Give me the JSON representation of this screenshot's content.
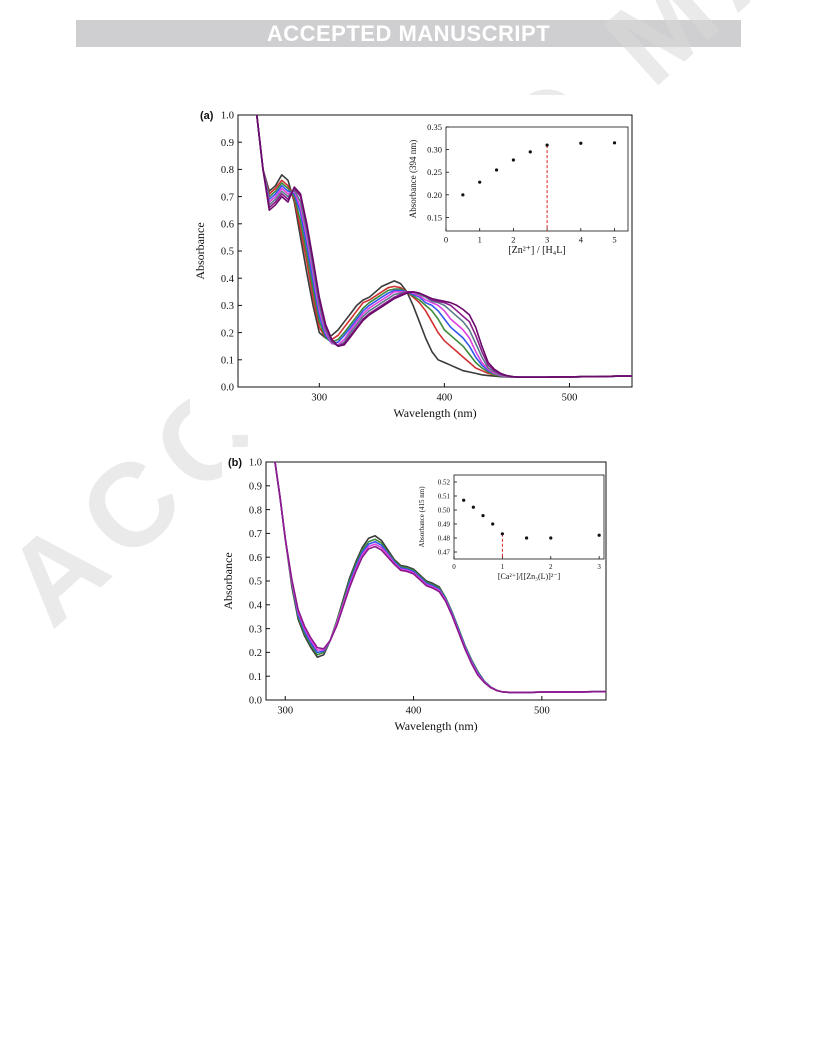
{
  "header": {
    "banner_text": "ACCEPTED MANUSCRIPT"
  },
  "watermark": {
    "text": "ACCEPTED MANUSCRIPT"
  },
  "chart_data": [
    {
      "panel": "(a)",
      "type": "line",
      "xlabel": "Wavelength (nm)",
      "ylabel": "Absorbance",
      "xlim": [
        235,
        550
      ],
      "ylim": [
        0.0,
        1.0
      ],
      "xticks": [
        300,
        400,
        500
      ],
      "yticks": [
        0.0,
        0.1,
        0.2,
        0.3,
        0.4,
        0.5,
        0.6,
        0.7,
        0.8,
        0.9,
        1.0
      ],
      "x": [
        250,
        255,
        260,
        265,
        270,
        275,
        280,
        285,
        290,
        295,
        300,
        305,
        310,
        315,
        320,
        325,
        330,
        335,
        340,
        345,
        350,
        355,
        360,
        365,
        370,
        375,
        380,
        385,
        390,
        395,
        400,
        405,
        410,
        415,
        420,
        425,
        430,
        435,
        440,
        445,
        450,
        455,
        460,
        465,
        470,
        475,
        480,
        490,
        500,
        510,
        520,
        530,
        540,
        550
      ],
      "series": [
        {
          "color": "#3a3a3a",
          "values": [
            1.0,
            0.8,
            0.72,
            0.74,
            0.78,
            0.76,
            0.68,
            0.55,
            0.42,
            0.3,
            0.2,
            0.18,
            0.19,
            0.21,
            0.24,
            0.27,
            0.3,
            0.32,
            0.33,
            0.35,
            0.37,
            0.38,
            0.39,
            0.38,
            0.35,
            0.3,
            0.24,
            0.18,
            0.13,
            0.1,
            0.09,
            0.08,
            0.07,
            0.06,
            0.055,
            0.05,
            0.045,
            0.042,
            0.04,
            0.038,
            0.037,
            0.036,
            0.036,
            0.036,
            0.036,
            0.036,
            0.036,
            0.037,
            0.037,
            0.038,
            0.038,
            0.039,
            0.04,
            0.04
          ]
        },
        {
          "color": "#d03030",
          "values": [
            1.0,
            0.8,
            0.71,
            0.73,
            0.76,
            0.74,
            0.69,
            0.58,
            0.46,
            0.33,
            0.22,
            0.18,
            0.175,
            0.19,
            0.22,
            0.25,
            0.28,
            0.31,
            0.32,
            0.335,
            0.35,
            0.365,
            0.37,
            0.365,
            0.35,
            0.33,
            0.31,
            0.28,
            0.24,
            0.2,
            0.17,
            0.15,
            0.13,
            0.11,
            0.09,
            0.07,
            0.06,
            0.05,
            0.045,
            0.04,
            0.038,
            0.037,
            0.036,
            0.036,
            0.036,
            0.036,
            0.036,
            0.037,
            0.037,
            0.038,
            0.038,
            0.039,
            0.04,
            0.04
          ]
        },
        {
          "color": "#3a8a3a",
          "values": [
            1.0,
            0.8,
            0.7,
            0.72,
            0.75,
            0.73,
            0.7,
            0.61,
            0.49,
            0.36,
            0.24,
            0.18,
            0.165,
            0.175,
            0.2,
            0.23,
            0.26,
            0.29,
            0.31,
            0.325,
            0.34,
            0.355,
            0.36,
            0.36,
            0.35,
            0.335,
            0.32,
            0.3,
            0.28,
            0.25,
            0.21,
            0.19,
            0.17,
            0.15,
            0.12,
            0.09,
            0.07,
            0.055,
            0.045,
            0.04,
            0.038,
            0.037,
            0.036,
            0.036,
            0.036,
            0.036,
            0.036,
            0.037,
            0.037,
            0.038,
            0.038,
            0.039,
            0.04,
            0.04
          ]
        },
        {
          "color": "#3355ee",
          "values": [
            1.0,
            0.8,
            0.69,
            0.71,
            0.74,
            0.72,
            0.71,
            0.64,
            0.52,
            0.39,
            0.26,
            0.19,
            0.16,
            0.165,
            0.19,
            0.22,
            0.25,
            0.28,
            0.3,
            0.315,
            0.33,
            0.345,
            0.355,
            0.355,
            0.35,
            0.34,
            0.33,
            0.31,
            0.3,
            0.28,
            0.25,
            0.22,
            0.2,
            0.18,
            0.15,
            0.11,
            0.08,
            0.06,
            0.05,
            0.042,
            0.039,
            0.037,
            0.036,
            0.036,
            0.036,
            0.036,
            0.036,
            0.037,
            0.037,
            0.038,
            0.038,
            0.039,
            0.04,
            0.04
          ]
        },
        {
          "color": "#e040e0",
          "values": [
            1.0,
            0.8,
            0.68,
            0.7,
            0.73,
            0.71,
            0.72,
            0.66,
            0.55,
            0.42,
            0.28,
            0.2,
            0.16,
            0.155,
            0.175,
            0.21,
            0.24,
            0.27,
            0.29,
            0.305,
            0.32,
            0.335,
            0.35,
            0.35,
            0.35,
            0.345,
            0.335,
            0.32,
            0.31,
            0.3,
            0.28,
            0.25,
            0.23,
            0.21,
            0.18,
            0.13,
            0.09,
            0.065,
            0.05,
            0.043,
            0.039,
            0.037,
            0.036,
            0.036,
            0.036,
            0.036,
            0.036,
            0.037,
            0.037,
            0.038,
            0.038,
            0.039,
            0.04,
            0.04
          ]
        },
        {
          "color": "#5a7a8a",
          "values": [
            1.0,
            0.8,
            0.67,
            0.69,
            0.72,
            0.7,
            0.725,
            0.68,
            0.57,
            0.44,
            0.3,
            0.21,
            0.165,
            0.15,
            0.165,
            0.2,
            0.23,
            0.26,
            0.28,
            0.295,
            0.31,
            0.325,
            0.34,
            0.345,
            0.35,
            0.35,
            0.34,
            0.33,
            0.315,
            0.31,
            0.3,
            0.28,
            0.26,
            0.24,
            0.21,
            0.16,
            0.11,
            0.07,
            0.055,
            0.045,
            0.04,
            0.037,
            0.036,
            0.036,
            0.036,
            0.036,
            0.036,
            0.037,
            0.037,
            0.038,
            0.038,
            0.039,
            0.04,
            0.04
          ]
        },
        {
          "color": "#8a1a8a",
          "values": [
            1.0,
            0.8,
            0.66,
            0.68,
            0.71,
            0.69,
            0.73,
            0.7,
            0.59,
            0.46,
            0.32,
            0.22,
            0.17,
            0.15,
            0.16,
            0.19,
            0.22,
            0.25,
            0.27,
            0.285,
            0.3,
            0.315,
            0.33,
            0.34,
            0.35,
            0.35,
            0.345,
            0.335,
            0.32,
            0.315,
            0.31,
            0.3,
            0.28,
            0.26,
            0.24,
            0.19,
            0.13,
            0.08,
            0.06,
            0.047,
            0.041,
            0.038,
            0.036,
            0.036,
            0.036,
            0.036,
            0.036,
            0.037,
            0.037,
            0.038,
            0.038,
            0.039,
            0.04,
            0.04
          ]
        },
        {
          "color": "#6a0a6a",
          "values": [
            1.0,
            0.8,
            0.65,
            0.67,
            0.7,
            0.68,
            0.735,
            0.71,
            0.6,
            0.47,
            0.33,
            0.23,
            0.175,
            0.15,
            0.155,
            0.185,
            0.215,
            0.245,
            0.265,
            0.28,
            0.295,
            0.31,
            0.325,
            0.335,
            0.345,
            0.35,
            0.345,
            0.335,
            0.325,
            0.32,
            0.315,
            0.31,
            0.3,
            0.285,
            0.265,
            0.22,
            0.15,
            0.09,
            0.065,
            0.05,
            0.042,
            0.038,
            0.036,
            0.036,
            0.036,
            0.036,
            0.036,
            0.037,
            0.037,
            0.038,
            0.038,
            0.039,
            0.04,
            0.04
          ]
        }
      ],
      "inset": {
        "type": "scatter",
        "xlabel": "[Zn²⁺] / [H₄L]",
        "ylabel": "Absorbance (394 nm)",
        "xlim": [
          0,
          5.4
        ],
        "ylim": [
          0.12,
          0.35
        ],
        "xticks": [
          0,
          1,
          2,
          3,
          4,
          5
        ],
        "yticks": [
          0.15,
          0.2,
          0.25,
          0.3,
          0.35
        ],
        "x": [
          0.5,
          1.0,
          1.5,
          2.0,
          2.5,
          3.0,
          4.0,
          5.0
        ],
        "y": [
          0.2,
          0.228,
          0.255,
          0.277,
          0.295,
          0.31,
          0.314,
          0.315
        ],
        "reference_line_x": 3.0
      }
    },
    {
      "panel": "(b)",
      "type": "line",
      "xlabel": "Wavelength (nm)",
      "ylabel": "Absorbance",
      "xlim": [
        285,
        550
      ],
      "ylim": [
        0.0,
        1.0
      ],
      "xticks": [
        300,
        400,
        500
      ],
      "yticks": [
        0.0,
        0.1,
        0.2,
        0.3,
        0.4,
        0.5,
        0.6,
        0.7,
        0.8,
        0.9,
        1.0
      ],
      "x": [
        292,
        296,
        300,
        305,
        310,
        315,
        320,
        325,
        330,
        335,
        340,
        345,
        350,
        355,
        360,
        365,
        370,
        375,
        380,
        385,
        390,
        395,
        400,
        405,
        410,
        415,
        420,
        425,
        430,
        435,
        440,
        445,
        450,
        455,
        460,
        465,
        470,
        475,
        480,
        490,
        500,
        510,
        520,
        530,
        540,
        550
      ],
      "series": [
        {
          "color": "#3a3a3a",
          "values": [
            1.0,
            0.85,
            0.68,
            0.48,
            0.34,
            0.27,
            0.22,
            0.18,
            0.19,
            0.25,
            0.33,
            0.42,
            0.51,
            0.58,
            0.64,
            0.68,
            0.69,
            0.67,
            0.63,
            0.59,
            0.565,
            0.56,
            0.55,
            0.525,
            0.5,
            0.49,
            0.475,
            0.43,
            0.37,
            0.3,
            0.23,
            0.17,
            0.12,
            0.08,
            0.055,
            0.04,
            0.033,
            0.032,
            0.032,
            0.032,
            0.033,
            0.033,
            0.034,
            0.034,
            0.035,
            0.035
          ]
        },
        {
          "color": "#3a8a3a",
          "values": [
            1.0,
            0.85,
            0.68,
            0.49,
            0.35,
            0.28,
            0.23,
            0.19,
            0.2,
            0.25,
            0.33,
            0.41,
            0.5,
            0.57,
            0.63,
            0.665,
            0.675,
            0.66,
            0.62,
            0.585,
            0.56,
            0.555,
            0.545,
            0.52,
            0.495,
            0.485,
            0.47,
            0.43,
            0.37,
            0.3,
            0.23,
            0.17,
            0.12,
            0.08,
            0.055,
            0.04,
            0.033,
            0.032,
            0.032,
            0.032,
            0.033,
            0.033,
            0.034,
            0.034,
            0.035,
            0.035
          ]
        },
        {
          "color": "#3355ee",
          "values": [
            1.0,
            0.85,
            0.68,
            0.5,
            0.36,
            0.29,
            0.24,
            0.2,
            0.205,
            0.25,
            0.32,
            0.4,
            0.49,
            0.56,
            0.62,
            0.655,
            0.665,
            0.65,
            0.615,
            0.58,
            0.555,
            0.55,
            0.54,
            0.515,
            0.49,
            0.48,
            0.465,
            0.425,
            0.365,
            0.295,
            0.225,
            0.165,
            0.115,
            0.078,
            0.054,
            0.04,
            0.033,
            0.032,
            0.032,
            0.032,
            0.033,
            0.033,
            0.034,
            0.034,
            0.035,
            0.035
          ]
        },
        {
          "color": "#e040e0",
          "values": [
            1.0,
            0.85,
            0.68,
            0.5,
            0.37,
            0.3,
            0.25,
            0.21,
            0.21,
            0.25,
            0.32,
            0.4,
            0.48,
            0.55,
            0.61,
            0.645,
            0.655,
            0.64,
            0.61,
            0.575,
            0.55,
            0.545,
            0.535,
            0.51,
            0.485,
            0.475,
            0.46,
            0.42,
            0.36,
            0.29,
            0.22,
            0.16,
            0.11,
            0.076,
            0.053,
            0.04,
            0.033,
            0.032,
            0.032,
            0.032,
            0.033,
            0.033,
            0.034,
            0.034,
            0.035,
            0.035
          ]
        },
        {
          "color": "#8a1a8a",
          "values": [
            1.0,
            0.85,
            0.68,
            0.51,
            0.38,
            0.31,
            0.26,
            0.22,
            0.215,
            0.25,
            0.31,
            0.39,
            0.47,
            0.54,
            0.6,
            0.635,
            0.645,
            0.63,
            0.6,
            0.57,
            0.545,
            0.54,
            0.53,
            0.505,
            0.48,
            0.47,
            0.455,
            0.415,
            0.355,
            0.285,
            0.215,
            0.155,
            0.105,
            0.074,
            0.052,
            0.04,
            0.033,
            0.032,
            0.032,
            0.032,
            0.033,
            0.033,
            0.034,
            0.034,
            0.035,
            0.035
          ]
        }
      ],
      "inset": {
        "type": "scatter",
        "xlabel": "[Ca²⁺]/[[Zn₃(L)]²⁻]",
        "ylabel": "Absorbance (415 nm)",
        "xlim": [
          0,
          3.1
        ],
        "ylim": [
          0.465,
          0.525
        ],
        "xticks": [
          0,
          1,
          2,
          3
        ],
        "yticks": [
          0.47,
          0.48,
          0.49,
          0.5,
          0.51,
          0.52
        ],
        "x": [
          0.2,
          0.4,
          0.6,
          0.8,
          1.0,
          1.5,
          2.0,
          3.0
        ],
        "y": [
          0.507,
          0.502,
          0.496,
          0.49,
          0.483,
          0.48,
          0.48,
          0.482
        ],
        "reference_line_x": 1.0
      }
    }
  ]
}
